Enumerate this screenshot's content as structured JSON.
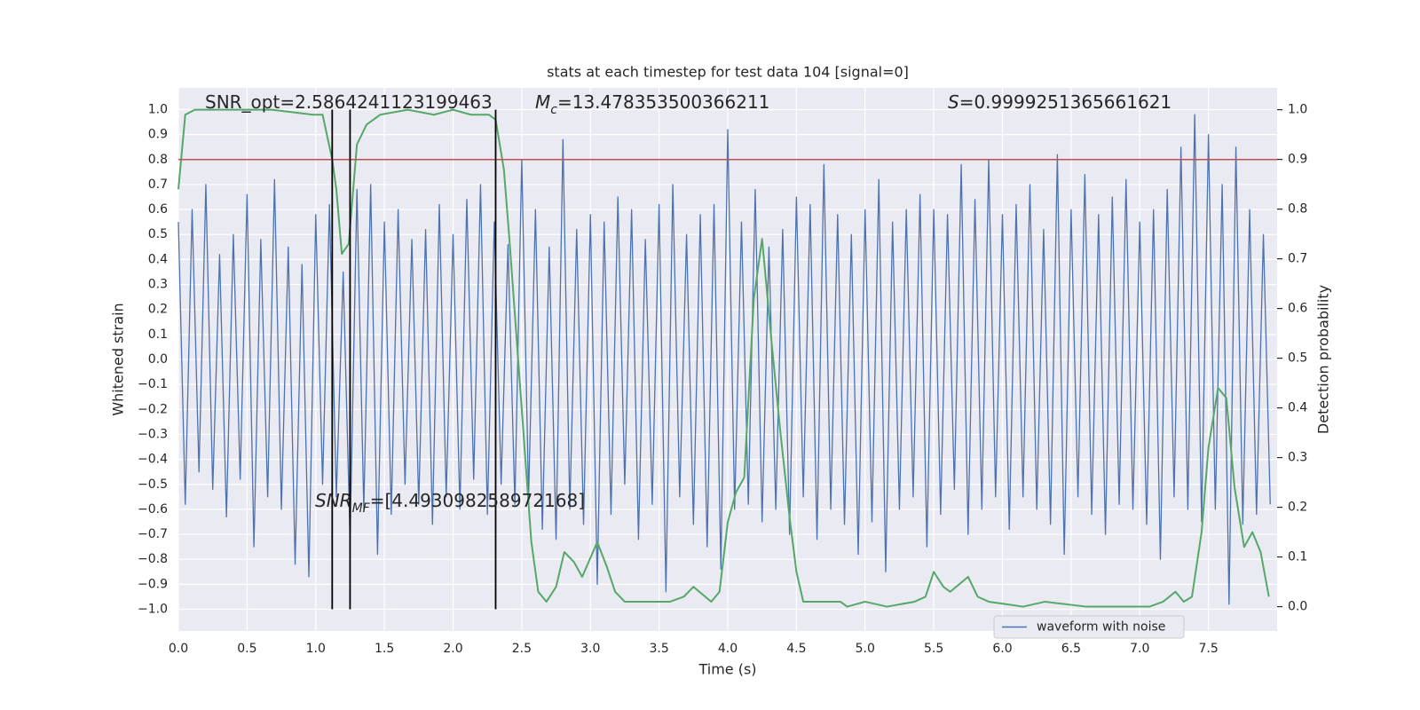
{
  "chart_data": {
    "type": "line",
    "title": "stats at each timestep for test data 104 [signal=0]",
    "xlabel": "Time (s)",
    "ylabel": "Whitened strain",
    "y2label": "Detection probability",
    "xlim": [
      0,
      8
    ],
    "ylim": [
      -1.087,
      1.087
    ],
    "y2lim": [
      -0.049,
      1.044
    ],
    "xticks": [
      {
        "value": 0,
        "label": "0.0"
      },
      0.5,
      {
        "value": 1,
        "label": "1.0"
      },
      1.5,
      {
        "value": 2,
        "label": "2.0"
      },
      2.5,
      {
        "value": 3,
        "label": "3.0"
      },
      3.5,
      {
        "value": 4,
        "label": "4.0"
      },
      4.5,
      {
        "value": 5,
        "label": "5.0"
      },
      5.5,
      {
        "value": 6,
        "label": "6.0"
      },
      6.5,
      {
        "value": 7,
        "label": "7.0"
      },
      7.5
    ],
    "yticks": [
      {
        "value": -1,
        "label": "−1.0"
      },
      {
        "value": -0.9,
        "label": "−0.9"
      },
      {
        "value": -0.8,
        "label": "−0.8"
      },
      {
        "value": -0.7,
        "label": "−0.7"
      },
      {
        "value": -0.6,
        "label": "−0.6"
      },
      {
        "value": -0.5,
        "label": "−0.5"
      },
      {
        "value": -0.4,
        "label": "−0.4"
      },
      {
        "value": -0.3,
        "label": "−0.3"
      },
      {
        "value": -0.2,
        "label": "−0.2"
      },
      {
        "value": -0.1,
        "label": "−0.1"
      },
      {
        "value": 0,
        "label": "0.0"
      },
      0.1,
      0.2,
      0.3,
      0.4,
      0.5,
      0.6,
      0.7,
      0.8,
      0.9,
      {
        "value": 1,
        "label": "1.0"
      }
    ],
    "y2ticks": [
      {
        "value": 0,
        "label": "0.0"
      },
      0.1,
      0.2,
      0.3,
      0.4,
      0.5,
      0.6,
      0.7,
      0.8,
      0.9,
      {
        "value": 1,
        "label": "1.0"
      }
    ],
    "grid": true,
    "legend": "lower right",
    "series": [
      {
        "name": "waveform with noise",
        "color": "#4c72b0",
        "x": [
          0.0,
          0.05,
          0.1,
          0.15,
          0.2,
          0.25,
          0.3,
          0.35,
          0.4,
          0.45,
          0.5,
          0.55,
          0.6,
          0.65,
          0.7,
          0.75,
          0.8,
          0.85,
          0.9,
          0.95,
          1.0,
          1.05,
          1.1,
          1.15,
          1.2,
          1.25,
          1.3,
          1.35,
          1.4,
          1.45,
          1.5,
          1.55,
          1.6,
          1.65,
          1.7,
          1.75,
          1.8,
          1.85,
          1.9,
          1.95,
          2.0,
          2.05,
          2.1,
          2.15,
          2.2,
          2.25,
          2.3,
          2.35,
          2.4,
          2.45,
          2.5,
          2.55,
          2.6,
          2.65,
          2.7,
          2.75,
          2.8,
          2.85,
          2.9,
          2.95,
          3.0,
          3.05,
          3.1,
          3.15,
          3.2,
          3.25,
          3.3,
          3.35,
          3.4,
          3.45,
          3.5,
          3.55,
          3.6,
          3.65,
          3.7,
          3.75,
          3.8,
          3.85,
          3.9,
          3.95,
          4.0,
          4.05,
          4.1,
          4.15,
          4.2,
          4.25,
          4.3,
          4.35,
          4.4,
          4.45,
          4.5,
          4.55,
          4.6,
          4.65,
          4.7,
          4.75,
          4.8,
          4.85,
          4.9,
          4.95,
          5.0,
          5.05,
          5.1,
          5.15,
          5.2,
          5.25,
          5.3,
          5.35,
          5.4,
          5.45,
          5.5,
          5.55,
          5.6,
          5.65,
          5.7,
          5.75,
          5.8,
          5.85,
          5.9,
          5.95,
          6.0,
          6.05,
          6.1,
          6.15,
          6.2,
          6.25,
          6.3,
          6.35,
          6.4,
          6.45,
          6.5,
          6.55,
          6.6,
          6.65,
          6.7,
          6.75,
          6.8,
          6.85,
          6.9,
          6.95,
          7.0,
          7.05,
          7.1,
          7.15,
          7.2,
          7.25,
          7.3,
          7.35,
          7.4,
          7.45,
          7.5,
          7.55,
          7.6,
          7.65,
          7.7,
          7.75,
          7.8,
          7.85,
          7.9,
          7.95
        ],
        "values": [
          0.55,
          -0.58,
          0.6,
          -0.45,
          0.7,
          -0.52,
          0.42,
          -0.63,
          0.5,
          -0.48,
          0.66,
          -0.75,
          0.48,
          -0.55,
          0.72,
          -0.6,
          0.45,
          -0.82,
          0.38,
          -0.87,
          0.58,
          -0.5,
          0.62,
          -0.55,
          0.35,
          -0.72,
          0.68,
          -0.6,
          0.7,
          -0.78,
          0.55,
          -0.62,
          0.6,
          -0.5,
          0.48,
          -0.58,
          0.52,
          -0.66,
          0.62,
          -0.55,
          0.5,
          -0.6,
          0.64,
          -0.48,
          0.7,
          -0.62,
          0.55,
          -0.5,
          0.46,
          -0.58,
          0.8,
          -0.55,
          0.6,
          -0.68,
          0.45,
          -0.72,
          0.88,
          -0.6,
          0.52,
          -0.66,
          0.58,
          -0.9,
          0.55,
          -0.62,
          0.65,
          -0.5,
          0.6,
          -0.72,
          0.48,
          -0.58,
          0.62,
          -0.93,
          0.7,
          -0.55,
          0.5,
          -0.66,
          0.58,
          -0.75,
          0.62,
          -0.84,
          0.92,
          -0.6,
          0.55,
          -0.58,
          0.68,
          -0.65,
          0.45,
          -0.6,
          0.52,
          -0.7,
          0.65,
          -0.55,
          0.62,
          -0.72,
          0.78,
          -0.6,
          0.58,
          -0.66,
          0.5,
          -0.78,
          0.6,
          -0.65,
          0.72,
          -0.85,
          0.55,
          -0.6,
          0.6,
          -0.55,
          0.66,
          -0.75,
          0.6,
          -0.62,
          0.58,
          -0.52,
          0.78,
          -0.7,
          0.64,
          -0.6,
          0.8,
          -0.55,
          0.58,
          -0.68,
          0.62,
          -0.55,
          0.7,
          -0.6,
          0.52,
          -0.66,
          0.82,
          -0.78,
          0.6,
          -0.55,
          0.74,
          -0.62,
          0.58,
          -0.7,
          0.65,
          -0.58,
          0.72,
          -0.6,
          0.55,
          -0.66,
          0.6,
          -0.8,
          0.68,
          -0.55,
          0.85,
          -0.6,
          0.98,
          -0.65,
          0.9,
          -0.6,
          0.7,
          -0.98,
          0.85,
          -0.66,
          0.6,
          -0.62,
          0.5,
          -0.58
        ]
      },
      {
        "color": "#55a868",
        "axis": "y2",
        "x": [
          0.0,
          0.05,
          0.12,
          0.35,
          0.68,
          0.98,
          1.05,
          1.12,
          1.15,
          1.19,
          1.24,
          1.3,
          1.37,
          1.47,
          1.67,
          1.86,
          2.0,
          2.13,
          2.26,
          2.31,
          2.37,
          2.41,
          2.46,
          2.51,
          2.57,
          2.62,
          2.68,
          2.75,
          2.81,
          2.88,
          2.94,
          3.05,
          3.12,
          3.18,
          3.25,
          3.32,
          3.45,
          3.58,
          3.68,
          3.75,
          3.88,
          3.94,
          4.0,
          4.06,
          4.12,
          4.19,
          4.25,
          4.32,
          4.38,
          4.45,
          4.5,
          4.55,
          4.63,
          4.73,
          4.82,
          4.87,
          5.0,
          5.16,
          5.36,
          5.44,
          5.5,
          5.57,
          5.62,
          5.75,
          5.82,
          5.9,
          6.15,
          6.31,
          6.61,
          7.07,
          7.17,
          7.26,
          7.32,
          7.38,
          7.45,
          7.5,
          7.57,
          7.63,
          7.69,
          7.76,
          7.82,
          7.88,
          7.94
        ],
        "values": [
          0.84,
          0.99,
          1.0,
          1.0,
          1.0,
          0.99,
          0.99,
          0.9,
          0.84,
          0.71,
          0.73,
          0.93,
          0.97,
          0.99,
          1.0,
          0.99,
          1.0,
          0.99,
          0.99,
          0.98,
          0.88,
          0.74,
          0.55,
          0.36,
          0.13,
          0.03,
          0.01,
          0.04,
          0.11,
          0.09,
          0.06,
          0.13,
          0.08,
          0.03,
          0.01,
          0.01,
          0.01,
          0.01,
          0.02,
          0.04,
          0.01,
          0.03,
          0.17,
          0.23,
          0.26,
          0.62,
          0.74,
          0.53,
          0.36,
          0.18,
          0.07,
          0.01,
          0.01,
          0.01,
          0.01,
          0.0,
          0.01,
          0.0,
          0.01,
          0.02,
          0.07,
          0.04,
          0.03,
          0.06,
          0.02,
          0.01,
          0.0,
          0.01,
          0.0,
          0.0,
          0.01,
          0.03,
          0.01,
          0.02,
          0.15,
          0.32,
          0.44,
          0.42,
          0.24,
          0.12,
          0.15,
          0.11,
          0.02
        ]
      }
    ],
    "hline": {
      "y": 0.8,
      "color": "#c44e52"
    },
    "vlines": {
      "x": [
        1.12,
        1.25,
        2.31
      ],
      "ymin": -1,
      "ymax": 1,
      "color": "#000000"
    },
    "annotations": [
      {
        "text": "SNR_opt=2.5864241123199463"
      },
      {
        "symbol": "M",
        "sub": "c",
        "text": "=13.478353500366211"
      },
      {
        "symbol": "S",
        "text": "=0.9999251365661621"
      },
      {
        "symbol": "SNR",
        "sub": "MF",
        "text": "=[4.493098258972168]"
      }
    ]
  }
}
